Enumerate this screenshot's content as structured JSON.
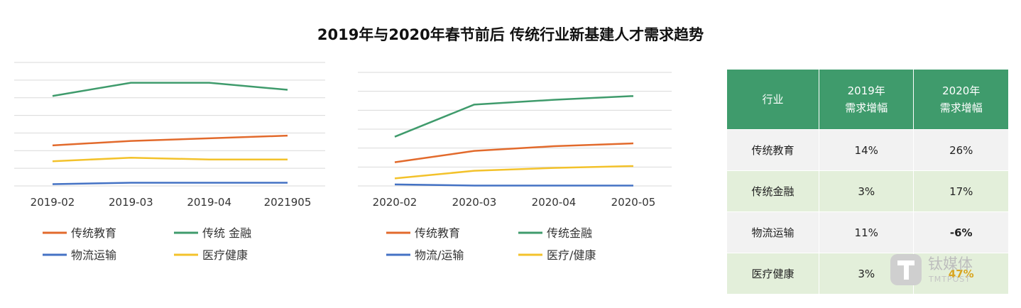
{
  "title": "2019年与2020年春节前后 传统行业新基建人才需求趋势",
  "chart_data": [
    {
      "type": "line",
      "categories": [
        "2019-02",
        "2019-03",
        "2019-04",
        "2021905"
      ],
      "ylim": [
        0,
        7
      ],
      "grid": true,
      "legend_position": "bottom",
      "series": [
        {
          "name": "传统教育",
          "color": "#e26a2c",
          "values": [
            2.3,
            2.55,
            2.7,
            2.85
          ]
        },
        {
          "name": "传统 金融",
          "color": "#3f9b6c",
          "values": [
            5.1,
            5.85,
            5.85,
            5.45
          ]
        },
        {
          "name": "物流运输",
          "color": "#4472c4",
          "values": [
            0.1,
            0.18,
            0.18,
            0.18
          ]
        },
        {
          "name": "医疗健康",
          "color": "#f3c22b",
          "values": [
            1.4,
            1.6,
            1.5,
            1.5
          ]
        }
      ]
    },
    {
      "type": "line",
      "categories": [
        "2020-02",
        "2020-03",
        "2020-04",
        "2020-05"
      ],
      "ylim": [
        0,
        6
      ],
      "grid": true,
      "legend_position": "bottom",
      "series": [
        {
          "name": "传统教育",
          "color": "#e26a2c",
          "values": [
            1.25,
            1.85,
            2.1,
            2.25
          ]
        },
        {
          "name": "传统金融",
          "color": "#3f9b6c",
          "values": [
            2.6,
            4.3,
            4.55,
            4.75
          ]
        },
        {
          "name": "物流/运输",
          "color": "#4472c4",
          "values": [
            0.08,
            0.02,
            0.02,
            0.02
          ]
        },
        {
          "name": "医疗/健康",
          "color": "#f3c22b",
          "values": [
            0.4,
            0.8,
            0.95,
            1.05
          ]
        }
      ]
    }
  ],
  "table": {
    "headers": [
      "行业",
      "2019年\n需求增幅",
      "2020年\n需求增幅"
    ],
    "rows": [
      [
        "传统教育",
        "14%",
        "26%"
      ],
      [
        "传统金融",
        "3%",
        "17%"
      ],
      [
        "物流运输",
        "11%",
        "-6%"
      ],
      [
        "医疗健康",
        "3%",
        "47%"
      ]
    ]
  },
  "watermark": {
    "name": "钛媒体",
    "sub": "TMTPOST",
    "icon": "tmtpost-logo-icon"
  }
}
